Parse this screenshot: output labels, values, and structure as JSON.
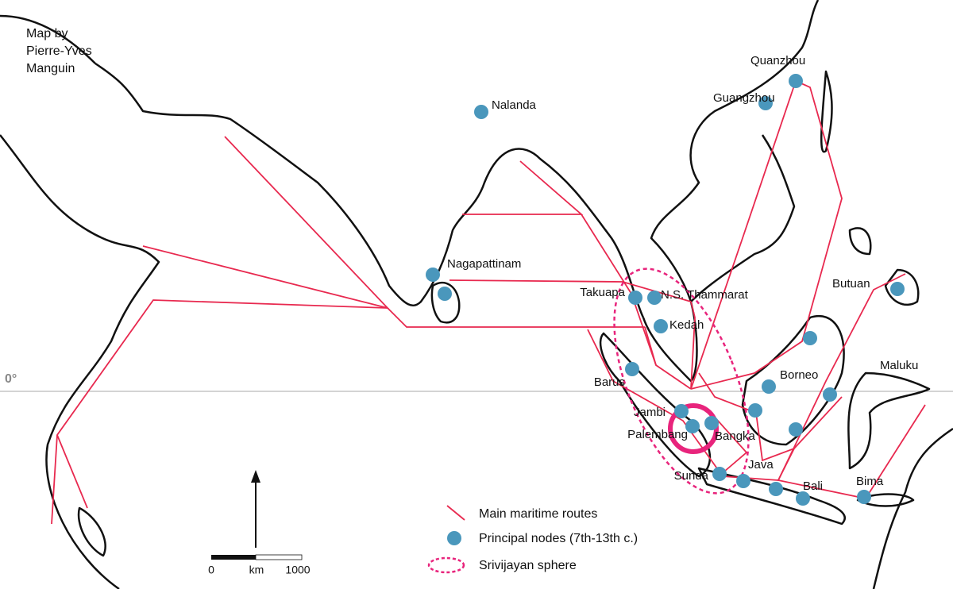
{
  "credit": [
    "Map by",
    "Pierre-Yves",
    "Manguin"
  ],
  "equator_label": "0°",
  "places": [
    "Quanzhou",
    "Guangzhou",
    "Nalanda",
    "Nagapattinam",
    "Takuapa",
    "N.S. Thammarat",
    "Kedah",
    "Butuan",
    "Barus",
    "Borneo",
    "Maluku",
    "Jambi",
    "Palembang",
    "Bangka",
    "Java",
    "Sunda",
    "Bali",
    "Bima"
  ],
  "legend": [
    "Main maritime routes",
    "Principal nodes (7th-13th c.)",
    "Srivijayan sphere"
  ],
  "scale": [
    "0",
    "km",
    "1000"
  ]
}
